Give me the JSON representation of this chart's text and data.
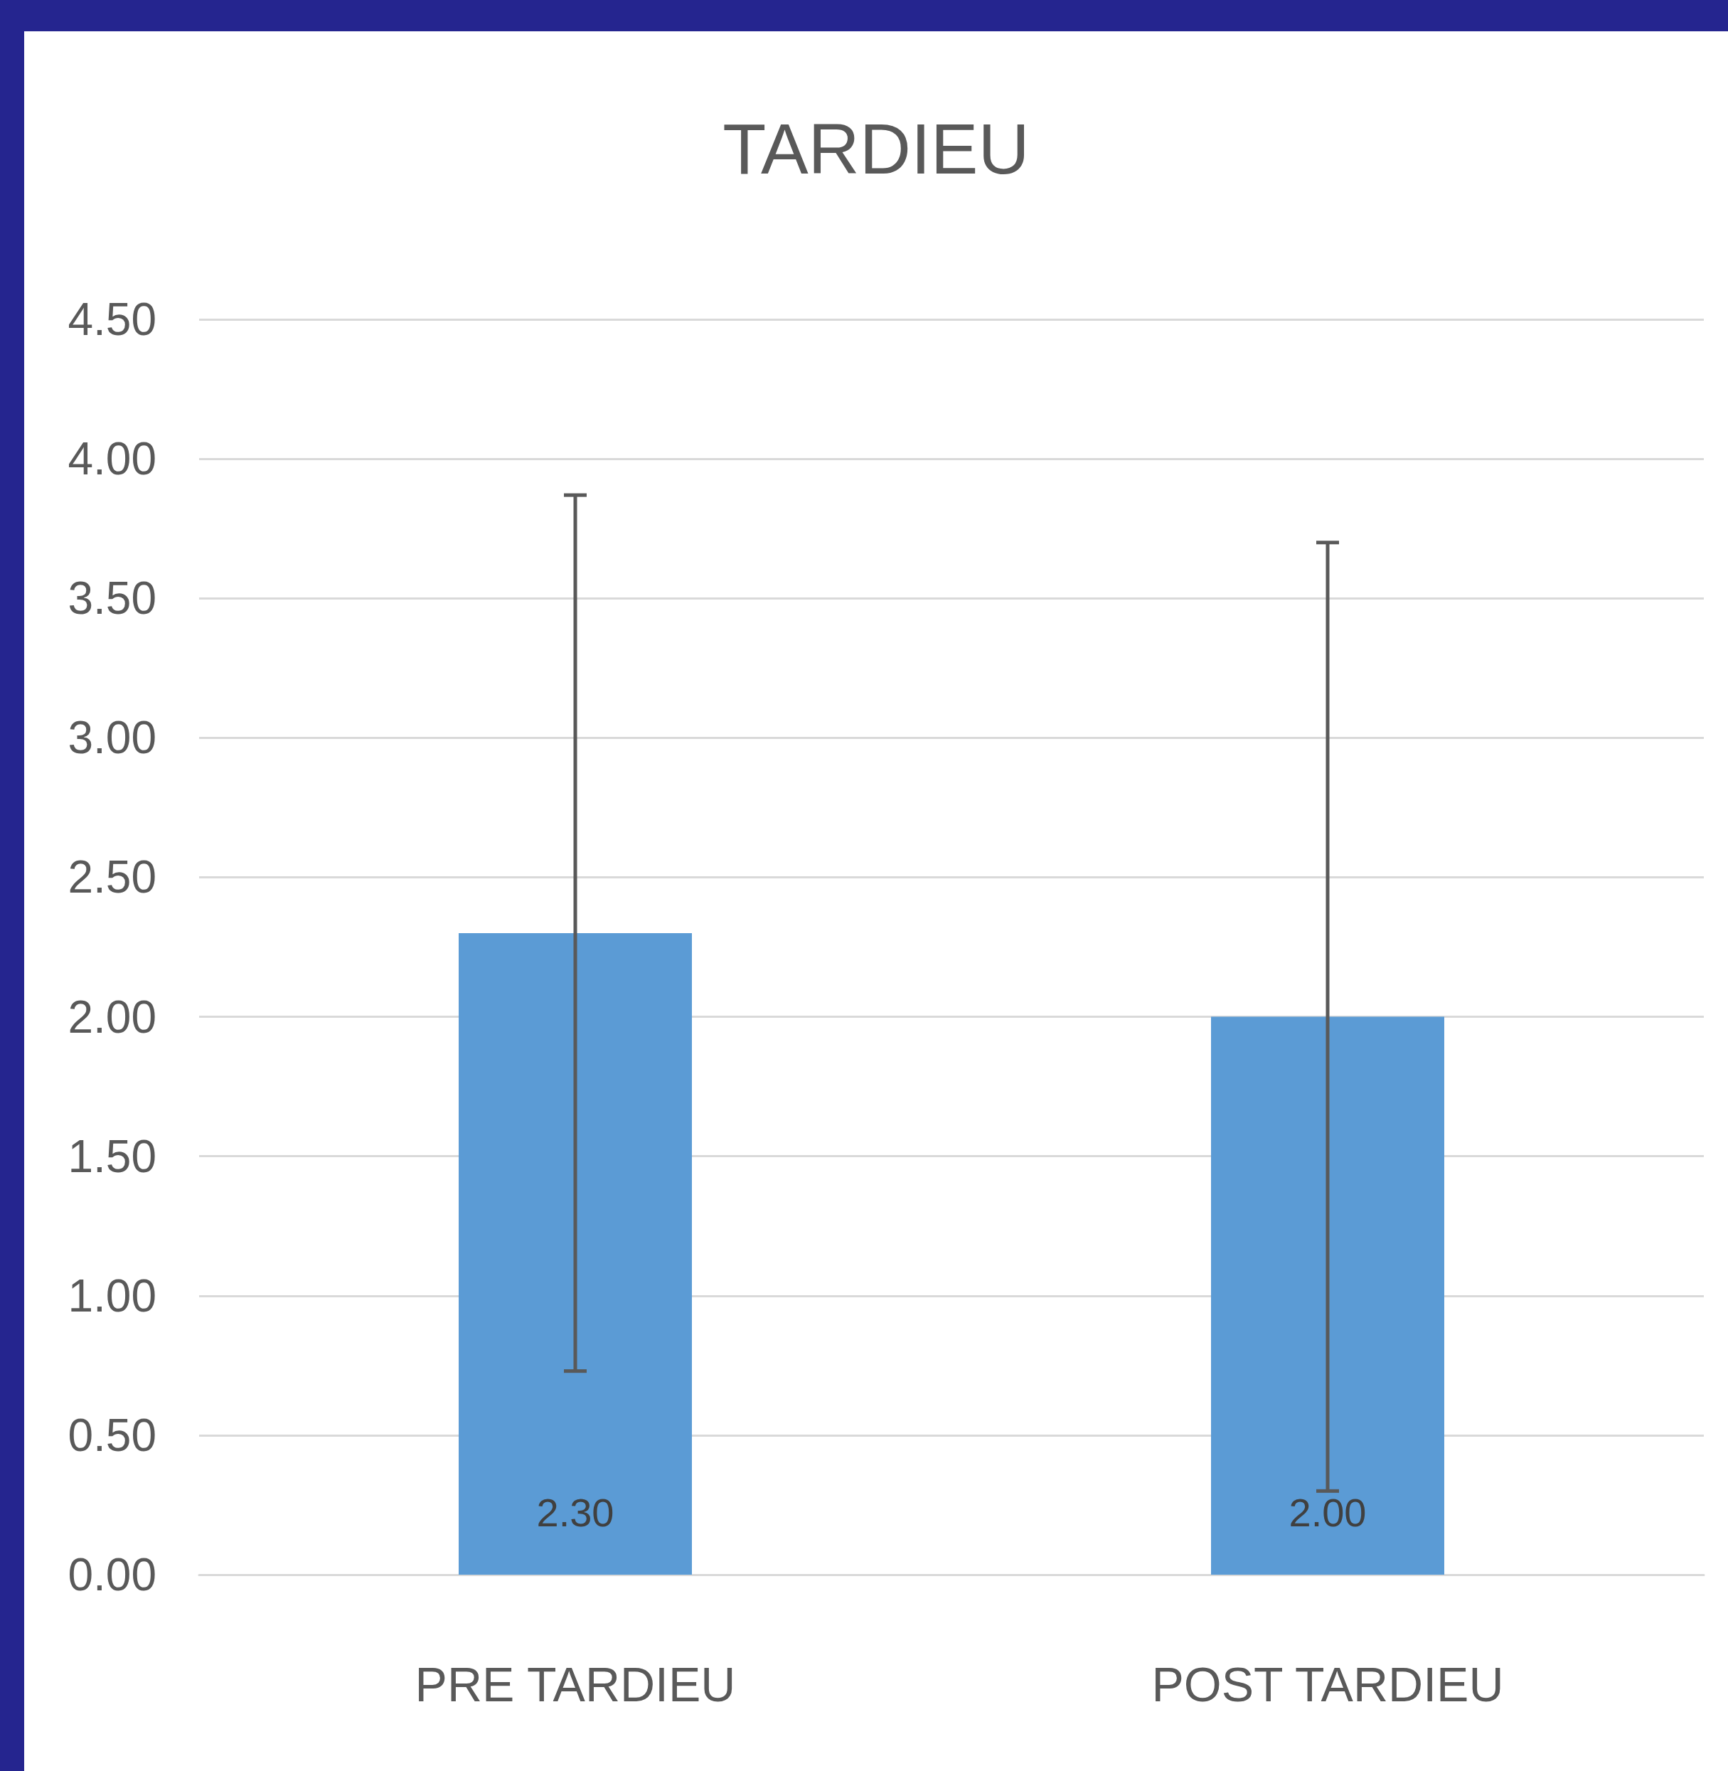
{
  "chart_data": {
    "type": "bar",
    "title": "TARDIEU",
    "categories": [
      "PRE TARDIEU",
      "POST TARDIEU"
    ],
    "values": [
      2.3,
      2.0
    ],
    "color": "#5b9bd5",
    "errors": [
      1.57,
      1.7
    ],
    "value_labels": [
      "2.30",
      "2.00"
    ],
    "ylim": [
      0,
      4.5
    ],
    "yticks": [
      {
        "value": 0,
        "label": "0.00"
      },
      {
        "value": 0.5,
        "label": "0.50"
      },
      {
        "value": 1,
        "label": "1.00"
      },
      {
        "value": 1.5,
        "label": "1.50"
      },
      {
        "value": 2,
        "label": "2.00"
      },
      {
        "value": 2.5,
        "label": "2.50"
      },
      {
        "value": 3,
        "label": "3.00"
      },
      {
        "value": 3.5,
        "label": "3.50"
      },
      {
        "value": 4,
        "label": "4.00"
      },
      {
        "value": 4.5,
        "label": "4.50"
      }
    ],
    "grid": "y"
  }
}
